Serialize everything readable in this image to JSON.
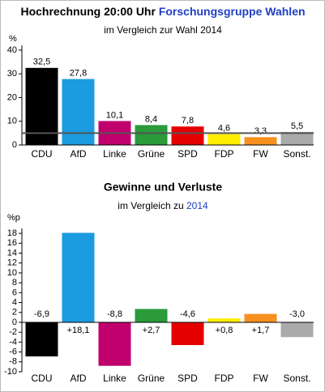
{
  "chart_data": [
    {
      "type": "bar",
      "title": "Hochrechnung 20:00 Uhr",
      "title_source": "Forschungsgruppe Wahlen",
      "title_source_color": "#1f3fbf",
      "subtitle": "im Vergleich zur Wahl 2014",
      "y_label": "%",
      "categories": [
        "CDU",
        "AfD",
        "Linke",
        "Grüne",
        "SPD",
        "FDP",
        "FW",
        "Sonst."
      ],
      "values": [
        32.5,
        27.8,
        10.1,
        8.4,
        7.8,
        4.6,
        3.3,
        5.5
      ],
      "value_labels": [
        "32,5",
        "27,8",
        "10,1",
        "8,4",
        "7,8",
        "4,6",
        "3,3",
        "5,5"
      ],
      "colors": [
        "#000000",
        "#1b9be0",
        "#c0006c",
        "#2a9a3a",
        "#e40000",
        "#ffee00",
        "#f7901e",
        "#aaaaaa"
      ],
      "ylim": [
        0,
        42
      ],
      "yticks": [
        0,
        10,
        20,
        30,
        40
      ],
      "reference_line": 5
    },
    {
      "type": "bar",
      "title": "Gewinne und Verluste",
      "subtitle": "im Vergleich zu",
      "subtitle_highlight": "2014",
      "subtitle_highlight_color": "#1f3fbf",
      "y_label": "%p",
      "categories": [
        "CDU",
        "AfD",
        "Linke",
        "Grüne",
        "SPD",
        "FDP",
        "FW",
        "Sonst."
      ],
      "values": [
        -6.9,
        18.1,
        -8.8,
        2.7,
        -4.6,
        0.8,
        1.7,
        -3.0
      ],
      "value_labels": [
        "-6,9",
        "+18,1",
        "-8,8",
        "+2,7",
        "-4,6",
        "+0,8",
        "+1,7",
        "-3,0"
      ],
      "colors": [
        "#000000",
        "#1b9be0",
        "#c0006c",
        "#2a9a3a",
        "#e40000",
        "#ffee00",
        "#f7901e",
        "#aaaaaa"
      ],
      "ylim": [
        -10,
        19
      ],
      "yticks": [
        -10,
        -8,
        -6,
        -4,
        -2,
        0,
        2,
        4,
        6,
        8,
        10,
        12,
        14,
        16,
        18
      ]
    }
  ]
}
